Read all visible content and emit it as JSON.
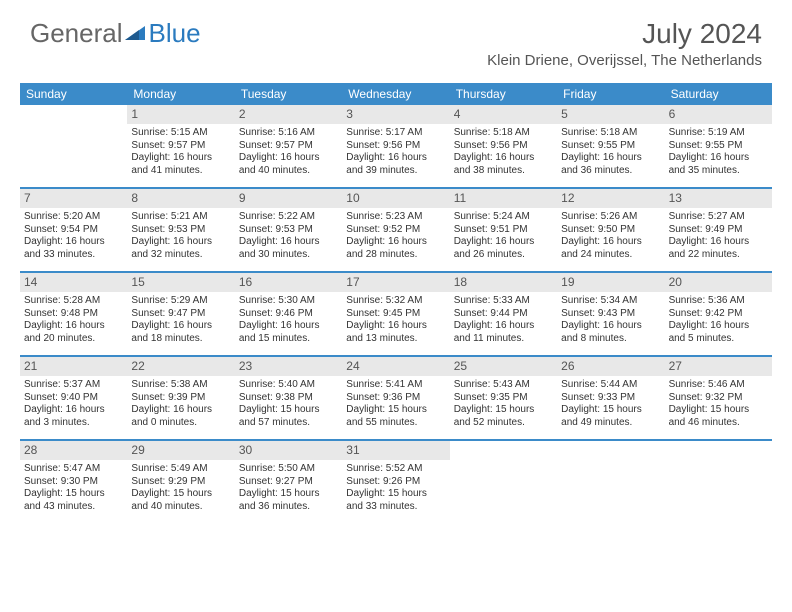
{
  "logo": {
    "text_general": "General",
    "text_blue": "Blue"
  },
  "header": {
    "month_title": "July 2024",
    "location": "Klein Driene, Overijssel, The Netherlands"
  },
  "colors": {
    "header_bg": "#3b8bc9",
    "header_text": "#ffffff",
    "daynum_bg": "#e8e8e8",
    "logo_blue": "#2b7bbf",
    "body_text": "#333333"
  },
  "day_headers": [
    "Sunday",
    "Monday",
    "Tuesday",
    "Wednesday",
    "Thursday",
    "Friday",
    "Saturday"
  ],
  "weeks": [
    [
      null,
      {
        "n": "1",
        "sunrise": "5:15 AM",
        "sunset": "9:57 PM",
        "daylight": "16 hours and 41 minutes."
      },
      {
        "n": "2",
        "sunrise": "5:16 AM",
        "sunset": "9:57 PM",
        "daylight": "16 hours and 40 minutes."
      },
      {
        "n": "3",
        "sunrise": "5:17 AM",
        "sunset": "9:56 PM",
        "daylight": "16 hours and 39 minutes."
      },
      {
        "n": "4",
        "sunrise": "5:18 AM",
        "sunset": "9:56 PM",
        "daylight": "16 hours and 38 minutes."
      },
      {
        "n": "5",
        "sunrise": "5:18 AM",
        "sunset": "9:55 PM",
        "daylight": "16 hours and 36 minutes."
      },
      {
        "n": "6",
        "sunrise": "5:19 AM",
        "sunset": "9:55 PM",
        "daylight": "16 hours and 35 minutes."
      }
    ],
    [
      {
        "n": "7",
        "sunrise": "5:20 AM",
        "sunset": "9:54 PM",
        "daylight": "16 hours and 33 minutes."
      },
      {
        "n": "8",
        "sunrise": "5:21 AM",
        "sunset": "9:53 PM",
        "daylight": "16 hours and 32 minutes."
      },
      {
        "n": "9",
        "sunrise": "5:22 AM",
        "sunset": "9:53 PM",
        "daylight": "16 hours and 30 minutes."
      },
      {
        "n": "10",
        "sunrise": "5:23 AM",
        "sunset": "9:52 PM",
        "daylight": "16 hours and 28 minutes."
      },
      {
        "n": "11",
        "sunrise": "5:24 AM",
        "sunset": "9:51 PM",
        "daylight": "16 hours and 26 minutes."
      },
      {
        "n": "12",
        "sunrise": "5:26 AM",
        "sunset": "9:50 PM",
        "daylight": "16 hours and 24 minutes."
      },
      {
        "n": "13",
        "sunrise": "5:27 AM",
        "sunset": "9:49 PM",
        "daylight": "16 hours and 22 minutes."
      }
    ],
    [
      {
        "n": "14",
        "sunrise": "5:28 AM",
        "sunset": "9:48 PM",
        "daylight": "16 hours and 20 minutes."
      },
      {
        "n": "15",
        "sunrise": "5:29 AM",
        "sunset": "9:47 PM",
        "daylight": "16 hours and 18 minutes."
      },
      {
        "n": "16",
        "sunrise": "5:30 AM",
        "sunset": "9:46 PM",
        "daylight": "16 hours and 15 minutes."
      },
      {
        "n": "17",
        "sunrise": "5:32 AM",
        "sunset": "9:45 PM",
        "daylight": "16 hours and 13 minutes."
      },
      {
        "n": "18",
        "sunrise": "5:33 AM",
        "sunset": "9:44 PM",
        "daylight": "16 hours and 11 minutes."
      },
      {
        "n": "19",
        "sunrise": "5:34 AM",
        "sunset": "9:43 PM",
        "daylight": "16 hours and 8 minutes."
      },
      {
        "n": "20",
        "sunrise": "5:36 AM",
        "sunset": "9:42 PM",
        "daylight": "16 hours and 5 minutes."
      }
    ],
    [
      {
        "n": "21",
        "sunrise": "5:37 AM",
        "sunset": "9:40 PM",
        "daylight": "16 hours and 3 minutes."
      },
      {
        "n": "22",
        "sunrise": "5:38 AM",
        "sunset": "9:39 PM",
        "daylight": "16 hours and 0 minutes."
      },
      {
        "n": "23",
        "sunrise": "5:40 AM",
        "sunset": "9:38 PM",
        "daylight": "15 hours and 57 minutes."
      },
      {
        "n": "24",
        "sunrise": "5:41 AM",
        "sunset": "9:36 PM",
        "daylight": "15 hours and 55 minutes."
      },
      {
        "n": "25",
        "sunrise": "5:43 AM",
        "sunset": "9:35 PM",
        "daylight": "15 hours and 52 minutes."
      },
      {
        "n": "26",
        "sunrise": "5:44 AM",
        "sunset": "9:33 PM",
        "daylight": "15 hours and 49 minutes."
      },
      {
        "n": "27",
        "sunrise": "5:46 AM",
        "sunset": "9:32 PM",
        "daylight": "15 hours and 46 minutes."
      }
    ],
    [
      {
        "n": "28",
        "sunrise": "5:47 AM",
        "sunset": "9:30 PM",
        "daylight": "15 hours and 43 minutes."
      },
      {
        "n": "29",
        "sunrise": "5:49 AM",
        "sunset": "9:29 PM",
        "daylight": "15 hours and 40 minutes."
      },
      {
        "n": "30",
        "sunrise": "5:50 AM",
        "sunset": "9:27 PM",
        "daylight": "15 hours and 36 minutes."
      },
      {
        "n": "31",
        "sunrise": "5:52 AM",
        "sunset": "9:26 PM",
        "daylight": "15 hours and 33 minutes."
      },
      null,
      null,
      null
    ]
  ],
  "labels": {
    "sunrise_prefix": "Sunrise: ",
    "sunset_prefix": "Sunset: ",
    "daylight_prefix": "Daylight: "
  }
}
